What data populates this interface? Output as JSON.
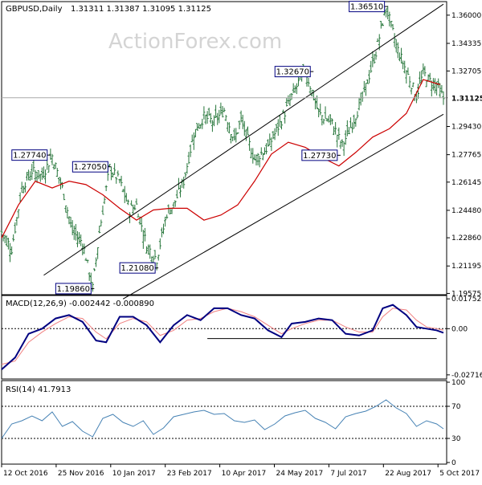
{
  "header": {
    "symbol": "GBPUSD,Daily",
    "ohlc": "1.31311 1.31387 1.31095 1.31125"
  },
  "watermark": "ActionForex.com",
  "colors": {
    "bars": "#26763a",
    "ma": "#cc0000",
    "channel": "#000000",
    "macd": "#000080",
    "signal": "#f08080",
    "rsi": "#4682b4",
    "dotted": "#000000",
    "label_border": "#000080"
  },
  "chart_data": [
    {
      "type": "line",
      "title": "GBPUSD,Daily",
      "ylim": [
        1.195,
        1.368
      ],
      "x_tick_labels": [
        "12 Oct 2016",
        "25 Nov 2016",
        "10 Jan 2017",
        "23 Feb 2017",
        "10 Apr 2017",
        "24 May 2017",
        "7 Jul 2017",
        "22 Aug 2017",
        "5 Oct 2017"
      ],
      "y_tick_labels": [
        "1.36000",
        "1.34335",
        "1.32705",
        "1.31125",
        "1.29430",
        "1.27765",
        "1.26145",
        "1.24480",
        "1.22860",
        "1.21195",
        "1.19575"
      ],
      "y_ticks": [
        1.36,
        1.34335,
        1.32705,
        1.31125,
        1.2943,
        1.27765,
        1.26145,
        1.2448,
        1.2286,
        1.21195,
        1.19575
      ],
      "current_price": 1.31125,
      "current_price_label": "1.31125",
      "series": [
        {
          "type": "line",
          "x": [
            0,
            10,
            20,
            30,
            40,
            50,
            60,
            70,
            80,
            90,
            100,
            110,
            120,
            130,
            140,
            150,
            160,
            170,
            180,
            190,
            200,
            210,
            220,
            230,
            240,
            250,
            260
          ],
          "values": [
            1.2285,
            1.248,
            1.262,
            1.258,
            1.262,
            1.26,
            1.254,
            1.246,
            1.239,
            1.245,
            1.246,
            1.246,
            1.239,
            1.242,
            1.248,
            1.262,
            1.278,
            1.285,
            1.282,
            1.276,
            1.271,
            1.279,
            1.288,
            1.293,
            1.302,
            1.322,
            1.319
          ]
        },
        {
          "type": "price",
          "x": [
            0,
            6,
            12,
            18,
            24,
            30,
            36,
            42,
            48,
            54,
            58,
            64,
            70,
            76,
            80,
            86,
            92,
            98,
            102,
            108,
            114,
            120,
            126,
            132,
            138,
            142,
            150,
            158,
            166,
            172,
            180,
            188,
            196,
            202,
            208,
            214,
            222,
            228,
            234,
            240,
            246,
            250,
            254,
            258,
            262
          ],
          "values": [
            1.232,
            1.222,
            1.258,
            1.268,
            1.265,
            1.277,
            1.258,
            1.232,
            1.226,
            1.199,
            1.232,
            1.27,
            1.262,
            1.245,
            1.248,
            1.224,
            1.216,
            1.243,
            1.248,
            1.262,
            1.29,
            1.3,
            1.297,
            1.304,
            1.286,
            1.298,
            1.275,
            1.282,
            1.298,
            1.312,
            1.328,
            1.302,
            1.296,
            1.283,
            1.296,
            1.311,
            1.338,
            1.365,
            1.342,
            1.327,
            1.312,
            1.326,
            1.321,
            1.319,
            1.311
          ]
        },
        {
          "type": "channel",
          "upper": [
            [
              25,
              1.2065
            ],
            [
              262,
              1.3665
            ]
          ],
          "lower": [
            [
              72,
              1.1925
            ],
            [
              262,
              1.3015
            ]
          ]
        }
      ],
      "price_labels": [
        {
          "text": "1.27740",
          "x": 28,
          "value": 1.2774
        },
        {
          "text": "1.27050",
          "x": 64,
          "value": 1.2705
        },
        {
          "text": "1.19860",
          "x": 54,
          "value": 1.1986
        },
        {
          "text": "1.21080",
          "x": 92,
          "value": 1.2108
        },
        {
          "text": "1.32670",
          "x": 184,
          "value": 1.3267
        },
        {
          "text": "1.27730",
          "x": 200,
          "value": 1.2773
        },
        {
          "text": "1.36510",
          "x": 228,
          "value": 1.3651
        }
      ]
    },
    {
      "type": "line",
      "title": "MACD(12,26,9) -0.002442 -0.000890",
      "ylim": [
        -0.0296,
        0.0195
      ],
      "y_tick_labels": [
        "0.017521",
        "0.00",
        "-0.027169"
      ],
      "y_ticks": [
        0.017521,
        0.0,
        -0.027169
      ],
      "series": [
        {
          "name": "MACD",
          "x": [
            0,
            8,
            16,
            24,
            32,
            40,
            48,
            56,
            62,
            70,
            78,
            86,
            94,
            102,
            110,
            118,
            126,
            134,
            142,
            150,
            158,
            166,
            172,
            180,
            188,
            196,
            204,
            212,
            220,
            226,
            232,
            240,
            246,
            252,
            258,
            262
          ],
          "values": [
            -0.024,
            -0.017,
            -0.003,
            0.0,
            0.006,
            0.008,
            0.004,
            -0.007,
            -0.008,
            0.007,
            0.007,
            0.002,
            -0.008,
            0.002,
            0.008,
            0.005,
            0.012,
            0.012,
            0.008,
            0.006,
            -0.001,
            -0.005,
            0.003,
            0.004,
            0.006,
            0.005,
            -0.003,
            -0.004,
            -0.001,
            0.012,
            0.014,
            0.008,
            0.001,
            0.0,
            -0.001,
            -0.0024
          ]
        },
        {
          "name": "Signal",
          "x": [
            0,
            8,
            16,
            24,
            32,
            40,
            48,
            56,
            62,
            70,
            78,
            86,
            94,
            102,
            110,
            118,
            126,
            134,
            142,
            150,
            158,
            166,
            172,
            180,
            188,
            196,
            204,
            212,
            220,
            226,
            232,
            240,
            246,
            252,
            258,
            262
          ],
          "values": [
            -0.021,
            -0.019,
            -0.008,
            -0.002,
            0.003,
            0.007,
            0.006,
            -0.002,
            -0.006,
            0.003,
            0.006,
            0.004,
            -0.004,
            -0.001,
            0.005,
            0.006,
            0.01,
            0.012,
            0.01,
            0.007,
            0.002,
            -0.003,
            0.0,
            0.003,
            0.005,
            0.005,
            0.001,
            -0.002,
            -0.002,
            0.007,
            0.012,
            0.011,
            0.005,
            0.001,
            0.0,
            -0.0009
          ]
        }
      ]
    },
    {
      "type": "line",
      "title": "RSI(14) 41.7913",
      "ylim": [
        0,
        100
      ],
      "y_tick_labels": [
        "100",
        "70",
        "30",
        "0"
      ],
      "y_ticks": [
        100,
        70,
        30,
        0
      ],
      "series": [
        {
          "name": "RSI",
          "x": [
            0,
            6,
            12,
            18,
            24,
            30,
            36,
            42,
            48,
            54,
            60,
            66,
            72,
            78,
            84,
            90,
            96,
            102,
            108,
            114,
            120,
            126,
            132,
            138,
            144,
            150,
            156,
            162,
            168,
            174,
            180,
            186,
            192,
            198,
            204,
            210,
            216,
            222,
            228,
            234,
            240,
            246,
            252,
            258,
            262
          ],
          "values": [
            30,
            48,
            52,
            58,
            52,
            63,
            45,
            51,
            39,
            32,
            55,
            60,
            50,
            45,
            52,
            35,
            43,
            57,
            60,
            63,
            65,
            60,
            61,
            52,
            50,
            53,
            41,
            48,
            58,
            62,
            65,
            55,
            50,
            42,
            57,
            61,
            64,
            70,
            78,
            68,
            61,
            45,
            52,
            48,
            42
          ]
        }
      ]
    }
  ]
}
